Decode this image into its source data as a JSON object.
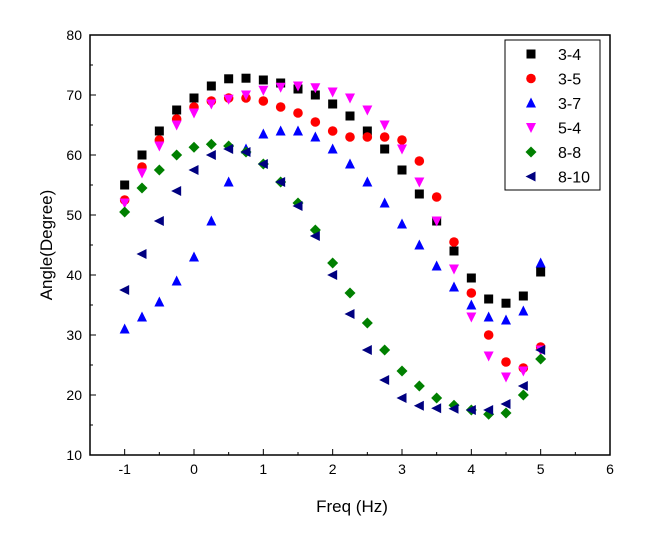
{
  "chart_data": {
    "type": "scatter",
    "title": "",
    "xlabel": "Freq (Hz)",
    "ylabel": "Angle(Degree)",
    "xlim": [
      -1.5,
      6
    ],
    "ylim": [
      10,
      80
    ],
    "xticks": [
      -1,
      0,
      1,
      2,
      3,
      4,
      5,
      6
    ],
    "yticks": [
      10,
      20,
      30,
      40,
      50,
      60,
      70,
      80
    ],
    "grid": false,
    "legend_position": "top-right",
    "x": [
      -1,
      -0.75,
      -0.5,
      -0.25,
      0,
      0.25,
      0.5,
      0.75,
      1,
      1.25,
      1.5,
      1.75,
      2,
      2.25,
      2.5,
      2.75,
      3,
      3.25,
      3.5,
      3.75,
      4,
      4.25,
      4.5,
      4.75,
      5
    ],
    "series": [
      {
        "name": "3-4",
        "marker": "square",
        "color": "#000000",
        "values": [
          55,
          60,
          64,
          67.5,
          69.5,
          71.5,
          72.7,
          72.8,
          72.5,
          72,
          71,
          70,
          68.5,
          66.5,
          64,
          61,
          57.5,
          53.5,
          49,
          44,
          39.5,
          36,
          35.3,
          36.5,
          40.5
        ]
      },
      {
        "name": "3-5",
        "marker": "circle",
        "color": "#ff0000",
        "values": [
          52.5,
          58,
          62.5,
          66,
          68,
          69,
          69.5,
          69.5,
          69,
          68,
          67,
          65.5,
          64,
          63,
          63,
          63,
          62.5,
          59,
          53,
          45.5,
          37,
          30,
          25.5,
          24.5,
          28
        ]
      },
      {
        "name": "3-7",
        "marker": "triangle-up",
        "color": "#0000ff",
        "values": [
          31,
          33,
          35.5,
          39,
          43,
          49,
          55.5,
          61,
          63.5,
          64,
          64,
          63,
          61,
          58.5,
          55.5,
          52,
          48.5,
          45,
          41.5,
          38,
          35,
          33,
          32.5,
          34,
          42
        ]
      },
      {
        "name": "5-4",
        "marker": "triangle-down",
        "color": "#ff00ff",
        "values": [
          52,
          57,
          61.5,
          65,
          67,
          68.5,
          69.3,
          70,
          70.8,
          71.3,
          71.5,
          71.2,
          70.5,
          69.5,
          67.5,
          65,
          61,
          55.5,
          49,
          41,
          33,
          26.5,
          23,
          24,
          27.5
        ]
      },
      {
        "name": "8-8",
        "marker": "diamond",
        "color": "#008000",
        "values": [
          50.5,
          54.5,
          57.5,
          60,
          61.3,
          61.8,
          61.5,
          60.5,
          58.5,
          55.5,
          52,
          47.5,
          42,
          37,
          32,
          27.5,
          24,
          21.5,
          19.5,
          18.3,
          17.5,
          16.8,
          17,
          20,
          26
        ]
      },
      {
        "name": "8-10",
        "marker": "triangle-left",
        "color": "#000080",
        "values": [
          37.5,
          43.5,
          49,
          54,
          57.5,
          60,
          61,
          60.5,
          58.5,
          55.5,
          51.5,
          46.5,
          40,
          33.5,
          27.5,
          22.5,
          19.5,
          18.2,
          17.8,
          17.7,
          17.5,
          17.5,
          18.5,
          21.5,
          27.5
        ]
      }
    ]
  }
}
